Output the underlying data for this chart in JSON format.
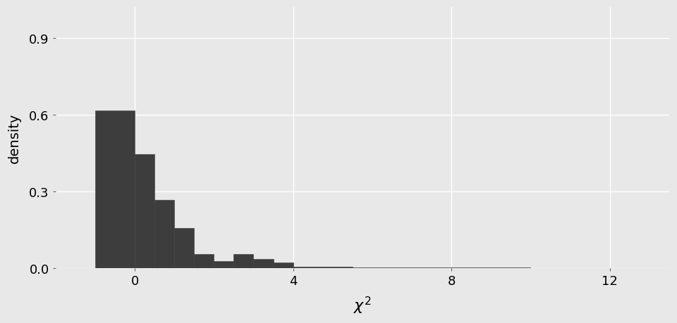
{
  "title": "",
  "xlabel": "$\\chi^2$",
  "ylabel": "density",
  "bar_color": "#3d3d3d",
  "bar_edge_color": "#3d3d3d",
  "background_color": "#E8E8E8",
  "grid_color": "#FFFFFF",
  "xlim": [
    -2.0,
    13.5
  ],
  "ylim": [
    0.0,
    1.02
  ],
  "xticks": [
    0,
    4,
    8,
    12
  ],
  "yticks": [
    0.0,
    0.3,
    0.6,
    0.9
  ],
  "bin_left_edges": [
    -1.0,
    0.0,
    0.5,
    1.0,
    1.5,
    2.0,
    2.5,
    3.0,
    3.5,
    4.0,
    4.5,
    5.0,
    5.5,
    6.0,
    6.5,
    7.0,
    7.5,
    8.0,
    8.5,
    9.0,
    9.5
  ],
  "bin_widths": [
    1.0,
    0.5,
    0.5,
    0.5,
    0.5,
    0.5,
    0.5,
    0.5,
    0.5,
    0.5,
    0.5,
    0.5,
    0.5,
    0.5,
    0.5,
    0.5,
    0.5,
    0.5,
    0.5,
    0.5,
    0.5
  ],
  "densities": [
    0.615,
    0.445,
    0.265,
    0.155,
    0.055,
    0.025,
    0.055,
    0.035,
    0.02,
    0.005,
    0.005,
    0.005,
    0.001,
    0.001,
    0.001,
    0.001,
    0.001,
    0.001,
    0.001,
    0.001,
    0.001
  ],
  "xlabel_fontsize": 16,
  "ylabel_fontsize": 14,
  "tick_fontsize": 13
}
